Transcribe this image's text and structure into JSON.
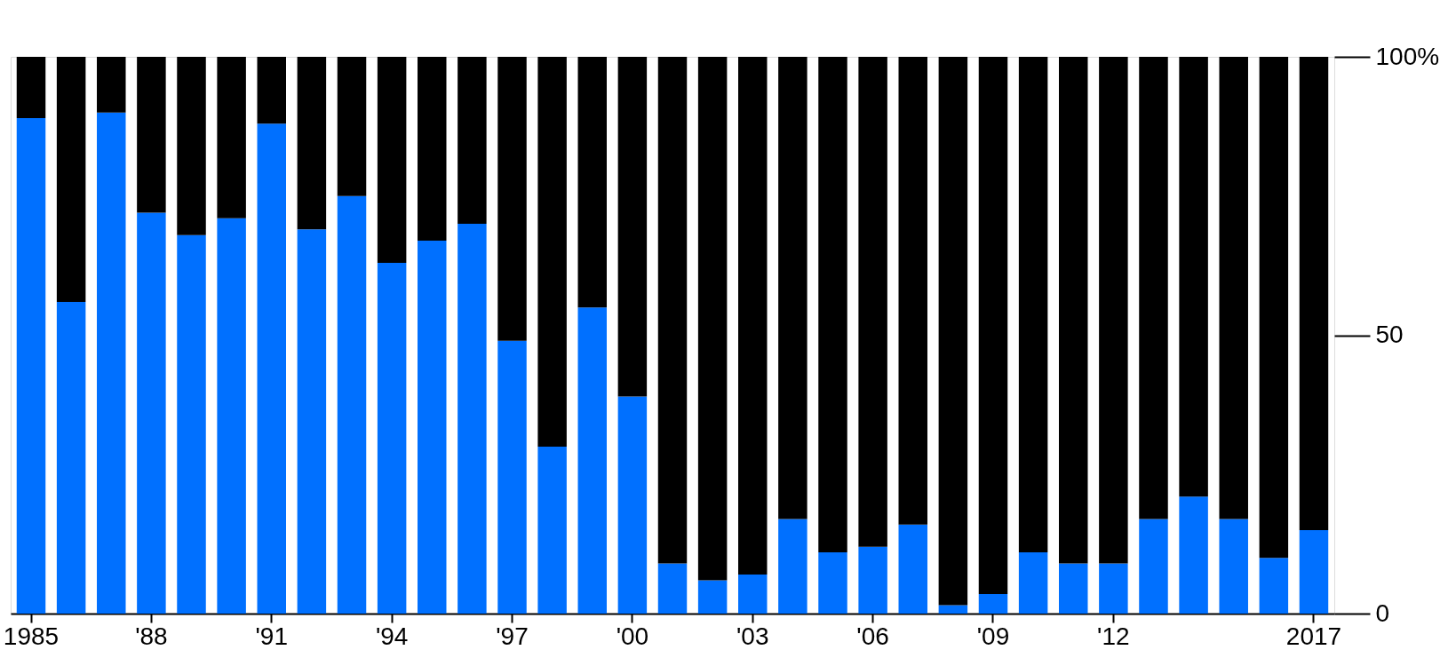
{
  "chart_data": {
    "type": "bar",
    "stacked": true,
    "categories": [
      "1985",
      null,
      null,
      "'88",
      null,
      null,
      "'91",
      null,
      null,
      "'94",
      null,
      null,
      "'97",
      null,
      null,
      "'00",
      null,
      null,
      "'03",
      null,
      null,
      "'06",
      null,
      null,
      "'09",
      null,
      null,
      "'12",
      null,
      null,
      null,
      null,
      "2017"
    ],
    "series": [
      {
        "color": "#0070ff",
        "values": [
          89,
          56,
          90,
          72,
          68,
          71,
          88,
          69,
          75,
          63,
          67,
          70,
          49,
          30,
          55,
          39,
          9,
          6,
          7,
          17,
          11,
          12,
          16,
          1.5,
          3.5,
          11,
          9,
          9,
          17,
          21,
          17,
          10,
          15
        ]
      },
      {
        "color": "#000000",
        "values": [
          11,
          44,
          10,
          28,
          32,
          29,
          12,
          31,
          25,
          37,
          33,
          30,
          51,
          70,
          45,
          61,
          91,
          94,
          93,
          83,
          89,
          88,
          84,
          98.5,
          96.5,
          89,
          91,
          91,
          83,
          79,
          83,
          90,
          85
        ]
      }
    ],
    "ylim": [
      0,
      100
    ],
    "yticks": [
      0,
      50,
      {
        "value": 100,
        "label": "100%"
      }
    ],
    "grid": false,
    "legend": false
  }
}
